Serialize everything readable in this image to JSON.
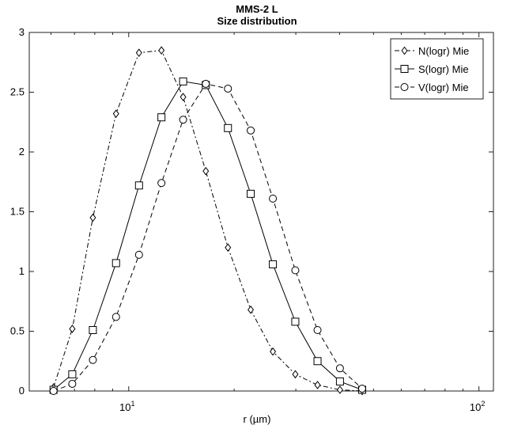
{
  "chart_data": {
    "type": "line",
    "title": "MMS-2 L",
    "subtitle": "Size distribution",
    "xlabel": "r (µm)",
    "ylabel": "",
    "xscale": "log",
    "xlim": [
      5.2,
      110
    ],
    "ylim": [
      0,
      3
    ],
    "grid": false,
    "legend_position": "top-right",
    "xticks": [
      {
        "value": 10,
        "base": "10",
        "exp": "1"
      },
      {
        "value": 100,
        "base": "10",
        "exp": "2"
      }
    ],
    "yticks": [
      {
        "value": 0,
        "label": "0"
      },
      {
        "value": 0.5,
        "label": "0.5"
      },
      {
        "value": 1,
        "label": "1"
      },
      {
        "value": 1.5,
        "label": "1.5"
      },
      {
        "value": 2,
        "label": "2"
      },
      {
        "value": 2.5,
        "label": "2.5"
      },
      {
        "value": 3,
        "label": "3"
      }
    ],
    "x": [
      6.1,
      6.9,
      7.9,
      9.2,
      10.7,
      12.4,
      14.3,
      16.6,
      19.2,
      22.3,
      25.8,
      29.9,
      34.6,
      40.1,
      46.4
    ],
    "series": [
      {
        "name": "N(logr) Mie",
        "marker": "diamond",
        "dash": "6,3,2,3",
        "values": [
          0.03,
          0.52,
          1.45,
          2.32,
          2.83,
          2.85,
          2.46,
          1.84,
          1.2,
          0.68,
          0.33,
          0.14,
          0.05,
          0.01,
          0.0
        ]
      },
      {
        "name": "S(logr) Mie",
        "marker": "square",
        "dash": "",
        "values": [
          0.01,
          0.14,
          0.51,
          1.07,
          1.72,
          2.29,
          2.59,
          2.56,
          2.2,
          1.65,
          1.06,
          0.58,
          0.25,
          0.08,
          0.01
        ]
      },
      {
        "name": "V(logr) Mie",
        "marker": "circle",
        "dash": "6,4",
        "values": [
          0.0,
          0.06,
          0.26,
          0.62,
          1.14,
          1.74,
          2.27,
          2.57,
          2.53,
          2.18,
          1.61,
          1.01,
          0.51,
          0.19,
          0.02
        ]
      }
    ]
  }
}
